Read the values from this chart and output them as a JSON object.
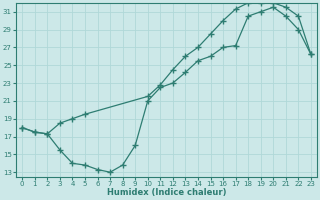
{
  "title": "",
  "xlabel": "Humidex (Indice chaleur)",
  "ylabel": "",
  "background_color": "#cce8e8",
  "grid_color": "#b0d8d8",
  "line_color": "#2e7d72",
  "xlim": [
    -0.5,
    23.5
  ],
  "ylim": [
    12.5,
    32
  ],
  "xticks": [
    0,
    1,
    2,
    3,
    4,
    5,
    6,
    7,
    8,
    9,
    10,
    11,
    12,
    13,
    14,
    15,
    16,
    17,
    18,
    19,
    20,
    21,
    22,
    23
  ],
  "yticks": [
    13,
    15,
    17,
    19,
    21,
    23,
    25,
    27,
    29,
    31
  ],
  "line1_x": [
    0,
    1,
    2,
    3,
    4,
    5,
    6,
    7,
    8,
    9,
    10,
    11,
    12,
    13,
    14,
    15,
    16,
    17,
    18,
    19,
    20,
    21,
    22,
    23
  ],
  "line1_y": [
    18.0,
    17.5,
    17.3,
    15.5,
    14.0,
    13.8,
    13.3,
    13.0,
    13.8,
    16.0,
    21.0,
    22.5,
    23.0,
    24.2,
    25.5,
    26.0,
    27.0,
    27.2,
    30.5,
    31.0,
    31.5,
    30.5,
    29.0,
    26.2
  ],
  "line2_x": [
    0,
    1,
    2,
    3,
    4,
    5,
    10,
    11,
    12,
    13,
    14,
    15,
    16,
    17,
    18,
    19,
    20,
    21,
    22,
    23
  ],
  "line2_y": [
    18.0,
    17.5,
    17.3,
    18.5,
    19.0,
    19.5,
    21.5,
    22.8,
    24.5,
    26.0,
    27.0,
    28.5,
    30.0,
    31.3,
    32.0,
    32.0,
    32.0,
    31.5,
    30.5,
    26.2
  ],
  "marker": "+",
  "markersize": 4,
  "linewidth": 0.9
}
